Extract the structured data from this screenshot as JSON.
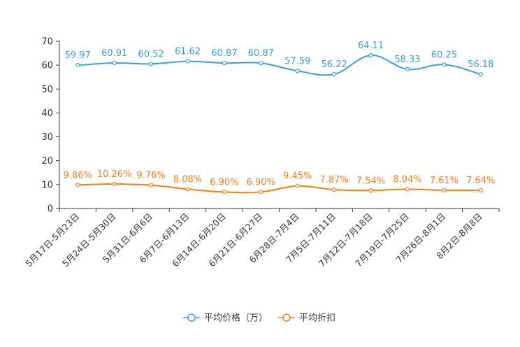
{
  "chart_data": {
    "type": "line",
    "title": "",
    "xlabel": "",
    "ylabel": "",
    "ylim": [
      0,
      70
    ],
    "yticks": [
      0,
      10,
      20,
      30,
      40,
      50,
      60,
      70
    ],
    "grid": false,
    "legend_position": "bottom-center",
    "categories": [
      "5月17日-5月23日",
      "5月24日-5月30日",
      "5月31日-6月6日",
      "6月7日-6月13日",
      "6月14日-6月20日",
      "6月21日-6月27日",
      "6月28日-7月4日",
      "7月5日-7月11日",
      "7月12日-7月18日",
      "7月19日-7月25日",
      "7月26日-8月1日",
      "8月2日-8月8日"
    ],
    "series": [
      {
        "name": "平均价格（万）",
        "color": "#3e9dd1",
        "values": [
          59.97,
          60.91,
          60.52,
          61.62,
          60.87,
          60.87,
          57.59,
          56.22,
          64.11,
          58.33,
          60.25,
          56.18
        ],
        "labels": [
          "59.97",
          "60.91",
          "60.52",
          "61.62",
          "60.87",
          "60.87",
          "57.59",
          "56.22",
          "64.11",
          "58.33",
          "60.25",
          "56.18"
        ]
      },
      {
        "name": "平均折扣",
        "color": "#f07c1b",
        "values": [
          9.86,
          10.26,
          9.76,
          8.08,
          6.9,
          6.9,
          9.45,
          7.87,
          7.54,
          8.04,
          7.61,
          7.64
        ],
        "labels": [
          "9.86%",
          "10.26%",
          "9.76%",
          "8.08%",
          "6.90%",
          "6.90%",
          "9.45%",
          "7.87%",
          "7.54%",
          "8.04%",
          "7.61%",
          "7.64%"
        ]
      }
    ]
  }
}
